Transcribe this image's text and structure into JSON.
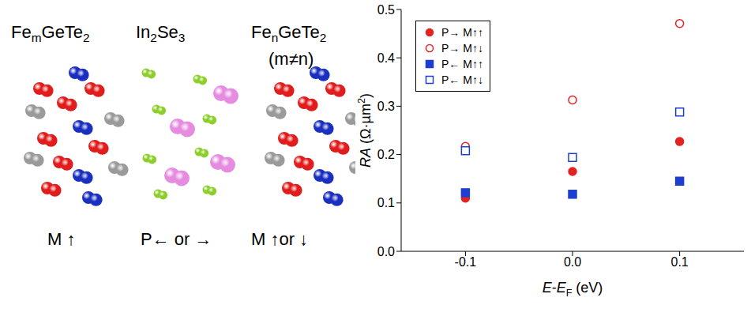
{
  "diagram": {
    "labels": {
      "left_material": [
        {
          "text": "Fe"
        },
        {
          "text": "m",
          "style": "sub"
        },
        {
          "text": "GeTe"
        },
        {
          "text": "2",
          "style": "sub"
        }
      ],
      "middle_material": [
        {
          "text": "In"
        },
        {
          "text": "2",
          "style": "sub"
        },
        {
          "text": "Se"
        },
        {
          "text": "3",
          "style": "sub"
        }
      ],
      "right_material": [
        {
          "text": "Fe"
        },
        {
          "text": "n",
          "style": "sub"
        },
        {
          "text": "GeTe"
        },
        {
          "text": "2",
          "style": "sub"
        }
      ],
      "right_note": [
        {
          "text": "(m≠n)"
        }
      ],
      "left_state": [
        {
          "text": "M ↑"
        }
      ],
      "middle_state": [
        {
          "text": "P← or →"
        }
      ],
      "right_state": [
        {
          "text": "M ↑or ↓"
        }
      ]
    }
  },
  "chart_data": {
    "type": "scatter",
    "x_label": [
      {
        "text": "E",
        "style": "i"
      },
      {
        "text": "-"
      },
      {
        "text": "E",
        "style": "i"
      },
      {
        "text": "F",
        "style": "sub"
      },
      {
        "text": " (eV)"
      }
    ],
    "y_label": [
      {
        "text": "RA",
        "style": "i"
      },
      {
        "text": " (Ω·µm"
      },
      {
        "text": "2",
        "style": "sup"
      },
      {
        "text": ")"
      }
    ],
    "x": [
      -0.1,
      0,
      0.1
    ],
    "xlim": [
      -0.16,
      0.16
    ],
    "xticks": [
      -0.1,
      {
        "value": 0,
        "label": "0.0"
      },
      0.1
    ],
    "ylim": [
      0,
      0.5
    ],
    "yticks": [
      {
        "value": 0,
        "label": "0.0"
      },
      0.1,
      0.2,
      0.3,
      0.4,
      0.5
    ],
    "legend": "upper left",
    "series": [
      {
        "name": "P→ M↑↑",
        "color": "#e32222",
        "marker": "circle",
        "values": [
          0.11,
          0.165,
          0.227
        ]
      },
      {
        "name": "P→ M↑↓",
        "color": "#e32222",
        "marker": "open_circle",
        "values": [
          0.217,
          0.313,
          0.471
        ]
      },
      {
        "name": "P← M↑↑",
        "color": "#1c3fd1",
        "marker": "square",
        "values": [
          0.121,
          0.118,
          0.145
        ]
      },
      {
        "name": "P← M↑↓",
        "color": "#1c3fd1",
        "marker": "open_square",
        "values": [
          0.208,
          0.194,
          0.288
        ]
      }
    ]
  }
}
